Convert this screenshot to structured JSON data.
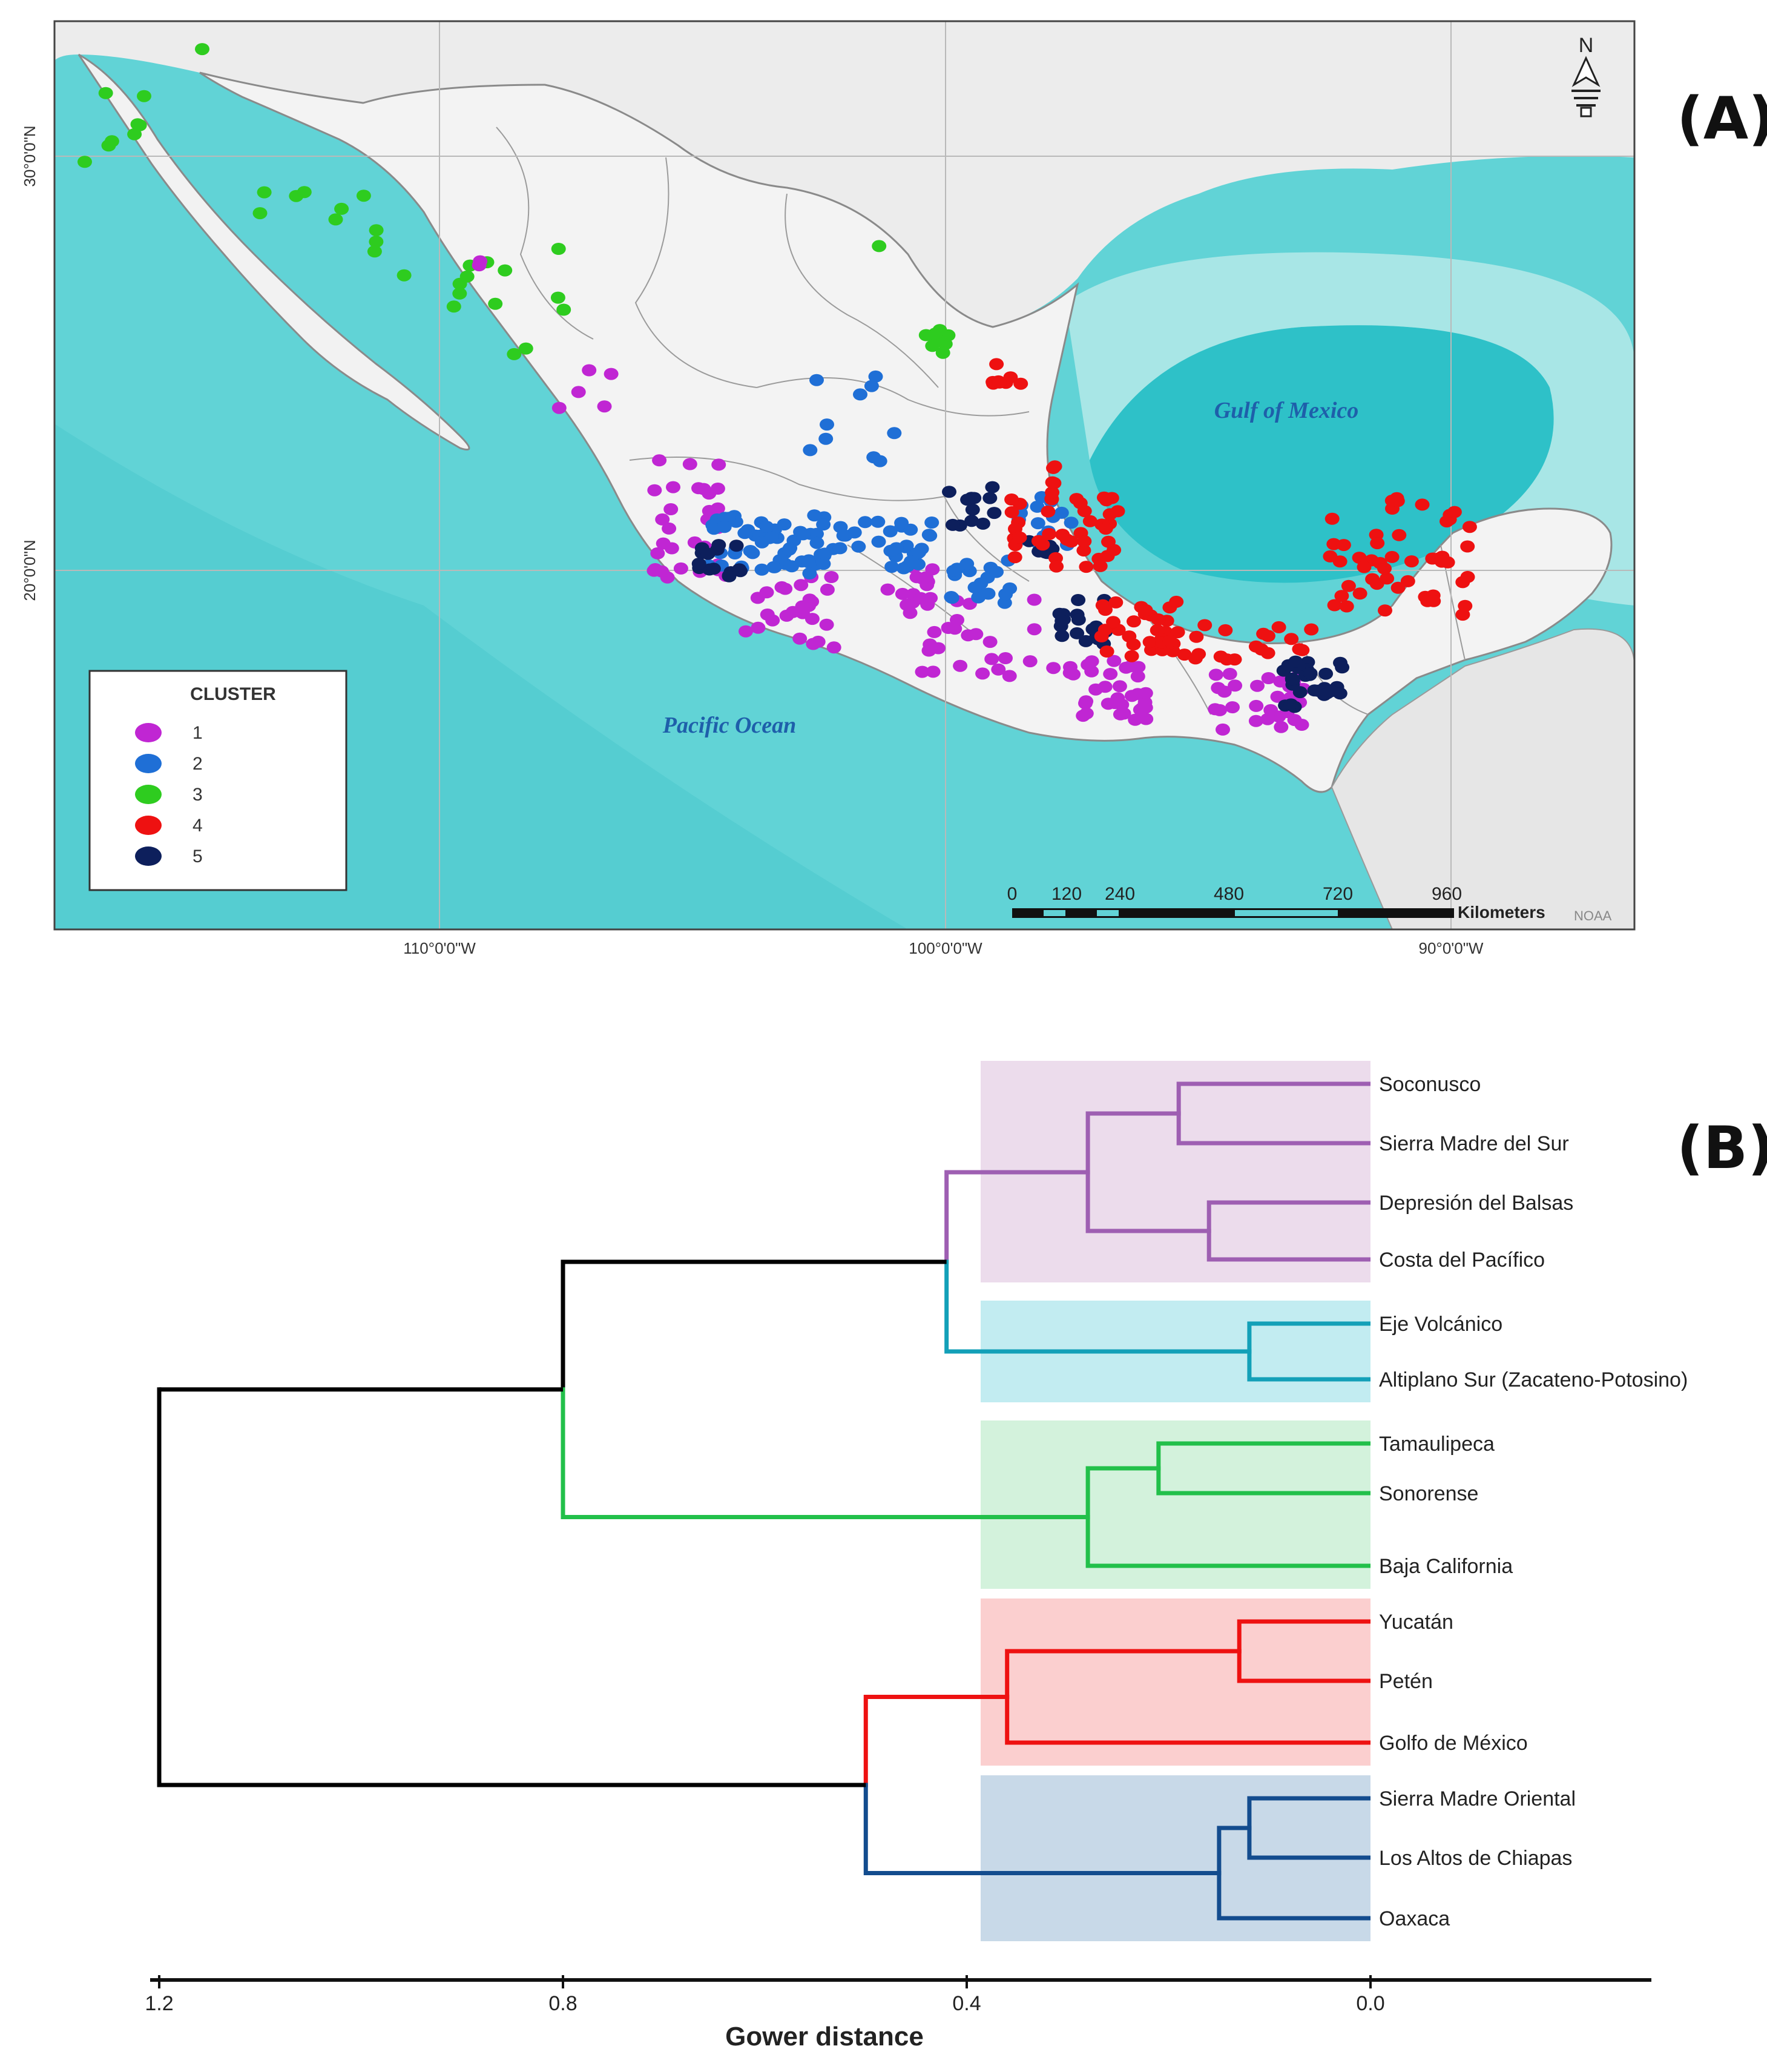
{
  "panels": [
    {
      "label": "(A)"
    },
    {
      "label": "(B)"
    }
  ],
  "map": {
    "ocean_labels": [
      "Gulf of Mexico",
      "Pacific Ocean"
    ],
    "lat_labels": [
      "30°0'0\"N",
      "20°0'0\"N"
    ],
    "lon_labels": [
      "110°0'0\"W",
      "100°0'0\"W",
      "90°0'0\"W"
    ],
    "north_arrow": "N",
    "legend": {
      "title": "CLUSTER",
      "items": [
        {
          "label": "1",
          "color": "#c026d3"
        },
        {
          "label": "2",
          "color": "#1f6fd6"
        },
        {
          "label": "3",
          "color": "#2ecc1f"
        },
        {
          "label": "4",
          "color": "#ee1111"
        },
        {
          "label": "5",
          "color": "#0d1f5c"
        }
      ]
    },
    "scale_bar": {
      "ticks": [
        "0",
        "120",
        "240",
        "480",
        "720",
        "960"
      ],
      "unit": "Kilometers",
      "credit": "NOAA"
    },
    "colors": {
      "ocean": "#61d3d6",
      "ocean_deep": "#2bc0c7",
      "land": "#f4f4f4",
      "border": "#7a7a7a"
    }
  },
  "chart_data": {
    "type": "dendrogram",
    "xlabel": "Gower distance",
    "xlim": [
      1.2,
      0.0
    ],
    "x_ticks": [
      "1.2",
      "0.8",
      "0.4",
      "0.0"
    ],
    "leaves": [
      "Soconusco",
      "Sierra Madre del Sur",
      "Depresión del Balsas",
      "Costa del Pacífico",
      "Eje Volcánico",
      "Altiplano Sur (Zacateno-Potosino)",
      "Tamaulipeca",
      "Sonorense",
      "Baja California",
      "Yucatán",
      "Petén",
      "Golfo de México",
      "Sierra Madre Oriental",
      "Los Altos de Chiapas",
      "Oaxaca"
    ],
    "groups": [
      {
        "color": "#9e5fb2",
        "shade": "#ecdcec",
        "leaves": [
          0,
          1,
          2,
          3
        ]
      },
      {
        "color": "#13a0b8",
        "shade": "#c2ecf1",
        "leaves": [
          4,
          5
        ]
      },
      {
        "color": "#22c04a",
        "shade": "#d3f2dc",
        "leaves": [
          6,
          7,
          8
        ]
      },
      {
        "color": "#ee1111",
        "shade": "#fbcfcf",
        "leaves": [
          9,
          10,
          11
        ]
      },
      {
        "color": "#134c8e",
        "shade": "#c8d9e8",
        "leaves": [
          12,
          13,
          14
        ]
      }
    ],
    "merges": [
      {
        "a": "L0",
        "b": "L1",
        "height": 0.19,
        "color": "#9e5fb2"
      },
      {
        "a": "L2",
        "b": "L3",
        "height": 0.16,
        "color": "#9e5fb2"
      },
      {
        "a": "M0",
        "b": "M1",
        "height": 0.28,
        "color": "#9e5fb2"
      },
      {
        "a": "L4",
        "b": "L5",
        "height": 0.12,
        "color": "#13a0b8"
      },
      {
        "a": "M2",
        "b": "M3",
        "height": 0.42,
        "color": "#13a0b8",
        "top_color": "#9e5fb2"
      },
      {
        "a": "L6",
        "b": "L7",
        "height": 0.21,
        "color": "#22c04a"
      },
      {
        "a": "M5",
        "b": "L8",
        "height": 0.28,
        "color": "#22c04a"
      },
      {
        "a": "M4",
        "b": "M6",
        "height": 0.8,
        "color": "#000000",
        "bottom_color": "#22c04a"
      },
      {
        "a": "L9",
        "b": "L10",
        "height": 0.13,
        "color": "#ee1111"
      },
      {
        "a": "M8",
        "b": "L11",
        "height": 0.36,
        "color": "#ee1111"
      },
      {
        "a": "L12",
        "b": "L13",
        "height": 0.12,
        "color": "#134c8e"
      },
      {
        "a": "M10",
        "b": "L14",
        "height": 0.15,
        "color": "#134c8e"
      },
      {
        "a": "M9",
        "b": "M11",
        "height": 0.5,
        "color": "#134c8e",
        "top_color": "#ee1111"
      },
      {
        "a": "M7",
        "b": "M12",
        "height": 1.2,
        "color": "#000000"
      }
    ]
  }
}
